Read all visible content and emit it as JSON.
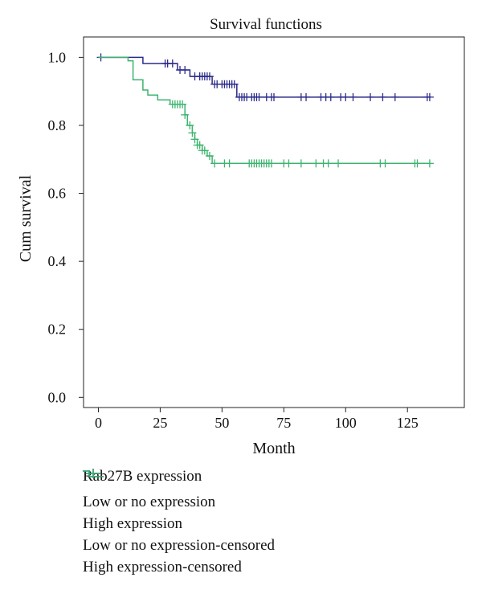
{
  "chart_data": {
    "type": "line",
    "step": true,
    "title": "Survival functions",
    "xlabel": "Month",
    "ylabel": "Cum survival",
    "xlim": [
      -6,
      148
    ],
    "ylim": [
      -0.03,
      1.06
    ],
    "xticks": [
      0,
      25,
      50,
      75,
      100,
      125
    ],
    "yticks": [
      0.0,
      0.2,
      0.4,
      0.6,
      0.8,
      1.0
    ],
    "ytick_labels": [
      "0.0",
      "0.2",
      "0.4",
      "0.6",
      "0.8",
      "1.0"
    ],
    "grid": false,
    "legend_placement": "bottom-left",
    "legend_title": "Rab27B expression",
    "series": [
      {
        "name": "Low or no expression",
        "color": "#2b2b8c",
        "steps": [
          [
            0,
            1.0
          ],
          [
            18,
            0.982
          ],
          [
            32,
            0.963
          ],
          [
            37,
            0.944
          ],
          [
            46,
            0.921
          ],
          [
            56,
            0.883
          ],
          [
            134,
            0.883
          ]
        ],
        "censored": [
          [
            1,
            1.0
          ],
          [
            27,
            0.982
          ],
          [
            28,
            0.982
          ],
          [
            30,
            0.982
          ],
          [
            33,
            0.963
          ],
          [
            35,
            0.963
          ],
          [
            39,
            0.944
          ],
          [
            41,
            0.944
          ],
          [
            42,
            0.944
          ],
          [
            43,
            0.944
          ],
          [
            44,
            0.944
          ],
          [
            45,
            0.944
          ],
          [
            47,
            0.921
          ],
          [
            48,
            0.921
          ],
          [
            50,
            0.921
          ],
          [
            51,
            0.921
          ],
          [
            52,
            0.921
          ],
          [
            53,
            0.921
          ],
          [
            54,
            0.921
          ],
          [
            55,
            0.921
          ],
          [
            57,
            0.883
          ],
          [
            58,
            0.883
          ],
          [
            59,
            0.883
          ],
          [
            60,
            0.883
          ],
          [
            62,
            0.883
          ],
          [
            63,
            0.883
          ],
          [
            64,
            0.883
          ],
          [
            65,
            0.883
          ],
          [
            68,
            0.883
          ],
          [
            70,
            0.883
          ],
          [
            71,
            0.883
          ],
          [
            82,
            0.883
          ],
          [
            84,
            0.883
          ],
          [
            90,
            0.883
          ],
          [
            92,
            0.883
          ],
          [
            94,
            0.883
          ],
          [
            98,
            0.883
          ],
          [
            100,
            0.883
          ],
          [
            103,
            0.883
          ],
          [
            110,
            0.883
          ],
          [
            115,
            0.883
          ],
          [
            120,
            0.883
          ],
          [
            133,
            0.883
          ],
          [
            134,
            0.883
          ]
        ]
      },
      {
        "name": "High expression",
        "color": "#3cb46e",
        "steps": [
          [
            0,
            1.0
          ],
          [
            12,
            0.99
          ],
          [
            14,
            0.934
          ],
          [
            18,
            0.904
          ],
          [
            20,
            0.889
          ],
          [
            24,
            0.875
          ],
          [
            29,
            0.862
          ],
          [
            35,
            0.831
          ],
          [
            36,
            0.8
          ],
          [
            38,
            0.778
          ],
          [
            39,
            0.759
          ],
          [
            40,
            0.742
          ],
          [
            42,
            0.726
          ],
          [
            44,
            0.71
          ],
          [
            46,
            0.688
          ],
          [
            134,
            0.688
          ]
        ],
        "censored": [
          [
            30,
            0.862
          ],
          [
            31,
            0.862
          ],
          [
            32,
            0.862
          ],
          [
            33,
            0.862
          ],
          [
            34,
            0.862
          ],
          [
            35,
            0.831
          ],
          [
            37,
            0.8
          ],
          [
            38,
            0.778
          ],
          [
            39,
            0.759
          ],
          [
            40,
            0.742
          ],
          [
            41,
            0.742
          ],
          [
            42,
            0.726
          ],
          [
            43,
            0.726
          ],
          [
            45,
            0.71
          ],
          [
            47,
            0.688
          ],
          [
            51,
            0.688
          ],
          [
            53,
            0.688
          ],
          [
            61,
            0.688
          ],
          [
            62,
            0.688
          ],
          [
            63,
            0.688
          ],
          [
            64,
            0.688
          ],
          [
            65,
            0.688
          ],
          [
            66,
            0.688
          ],
          [
            67,
            0.688
          ],
          [
            68,
            0.688
          ],
          [
            69,
            0.688
          ],
          [
            70,
            0.688
          ],
          [
            75,
            0.688
          ],
          [
            77,
            0.688
          ],
          [
            82,
            0.688
          ],
          [
            88,
            0.688
          ],
          [
            91,
            0.688
          ],
          [
            93,
            0.688
          ],
          [
            97,
            0.688
          ],
          [
            114,
            0.688
          ],
          [
            116,
            0.688
          ],
          [
            128,
            0.688
          ],
          [
            129,
            0.688
          ],
          [
            134,
            0.688
          ]
        ]
      }
    ],
    "legend_entries": [
      {
        "label": "Low or no expression",
        "kind": "step",
        "color": "#2b2b8c"
      },
      {
        "label": "High expression",
        "kind": "step",
        "color": "#3cb46e"
      },
      {
        "label": "Low or no expression-censored",
        "kind": "cross",
        "color": "#2b2b8c"
      },
      {
        "label": "High expression-censored",
        "kind": "cross",
        "color": "#3cb46e"
      }
    ]
  }
}
